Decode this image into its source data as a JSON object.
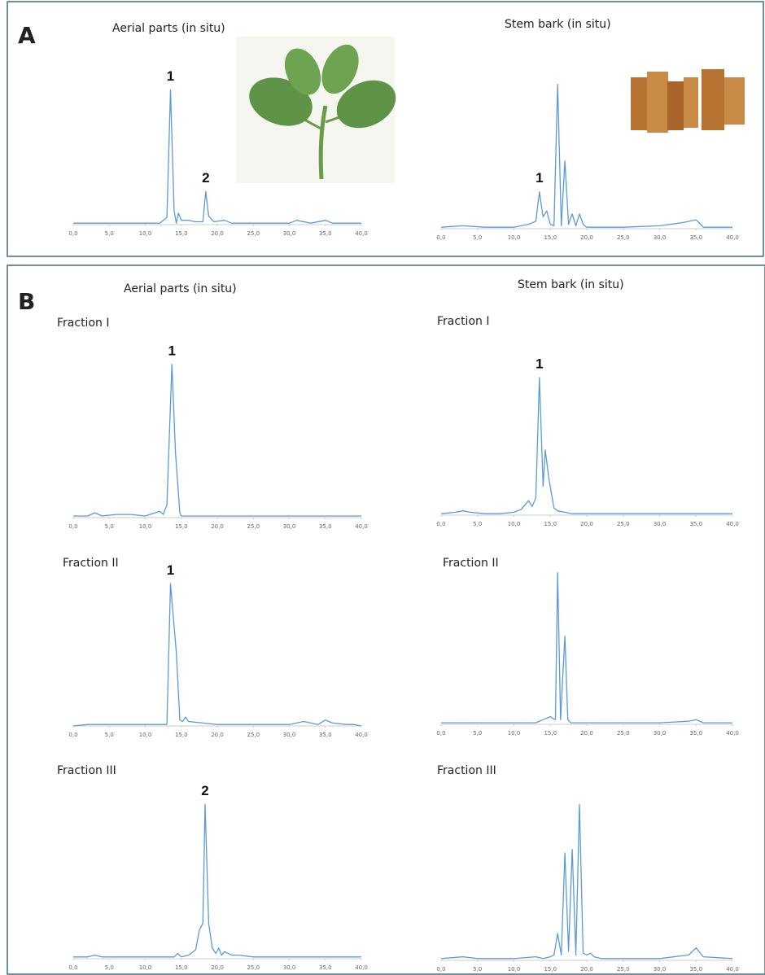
{
  "panel_labels": [
    "A",
    "B"
  ],
  "column_headers": [
    "Aerial parts (in situ)",
    "Stem bark (in situ)"
  ],
  "chart_data": [
    {
      "type": "line",
      "title": "Aerial parts (in situ)",
      "color": "#5b9bd5",
      "x": [
        0,
        3,
        6,
        9,
        12,
        13,
        13.5,
        14,
        14.3,
        14.6,
        15,
        16,
        17,
        18,
        18.4,
        18.8,
        19.5,
        21,
        22,
        25,
        30,
        31,
        33,
        35,
        36,
        40
      ],
      "values": [
        1,
        1,
        1,
        1,
        1,
        5,
        94,
        10,
        1,
        8,
        3,
        3,
        2,
        2,
        23,
        6,
        2,
        3,
        1,
        1,
        1,
        3,
        1,
        3,
        1,
        1
      ],
      "annotations": [
        {
          "text": "1",
          "x": 13.5
        },
        {
          "text": "2",
          "x": 18.4
        }
      ],
      "xlim": [
        0,
        40
      ],
      "ylim": [
        0,
        100
      ],
      "xticks": [
        {
          "value": 0,
          "label": "0,0"
        },
        {
          "value": 5,
          "label": "5,0"
        },
        {
          "value": 10,
          "label": "10,0"
        },
        {
          "value": 15,
          "label": "15,0"
        },
        {
          "value": 20,
          "label": "20,0"
        },
        {
          "value": 25,
          "label": "25,0"
        },
        {
          "value": 30,
          "label": "30,0"
        },
        {
          "value": 35,
          "label": "35,0"
        },
        {
          "value": 40,
          "label": "40,0"
        }
      ]
    },
    {
      "type": "line",
      "title": "Stem bark (in situ)",
      "color": "#5b9bd5",
      "x": [
        0,
        3,
        6,
        10,
        12,
        13,
        13.5,
        14,
        14.5,
        15,
        15.5,
        16,
        16.5,
        17,
        17.5,
        18,
        18.5,
        19,
        19.5,
        20,
        25,
        30,
        33,
        35,
        36,
        40
      ],
      "values": [
        1,
        2,
        1,
        1,
        3,
        5,
        25,
        8,
        12,
        3,
        2,
        98,
        2,
        46,
        3,
        10,
        2,
        10,
        3,
        1,
        1,
        2,
        4,
        6,
        1,
        1
      ],
      "annotations": [
        {
          "text": "1",
          "x": 13.5
        }
      ],
      "xlim": [
        0,
        40
      ],
      "ylim": [
        0,
        100
      ],
      "xticks": [
        {
          "value": 0,
          "label": "0,0"
        },
        {
          "value": 5,
          "label": "5,0"
        },
        {
          "value": 10,
          "label": "10,0"
        },
        {
          "value": 15,
          "label": "15,0"
        },
        {
          "value": 20,
          "label": "20,0"
        },
        {
          "value": 25,
          "label": "25,0"
        },
        {
          "value": 30,
          "label": "30,0"
        },
        {
          "value": 35,
          "label": "35,0"
        },
        {
          "value": 40,
          "label": "40,0"
        }
      ]
    },
    {
      "type": "line",
      "title": "Fraction I",
      "color": "#5b9bd5",
      "x": [
        0,
        2,
        3,
        4,
        6,
        8,
        10,
        12,
        12.5,
        13,
        13.7,
        14.2,
        14.8,
        15,
        16,
        20,
        25,
        30,
        35,
        40
      ],
      "values": [
        1,
        1,
        3,
        1,
        2,
        2,
        1,
        4,
        2,
        8,
        96,
        40,
        3,
        1,
        1,
        1,
        1,
        1,
        1,
        1
      ],
      "annotations": [
        {
          "text": "1",
          "x": 13.7
        }
      ],
      "xlim": [
        0,
        40
      ],
      "ylim": [
        0,
        100
      ],
      "xticks": [
        {
          "value": 0,
          "label": "0,0"
        },
        {
          "value": 5,
          "label": "5,0"
        },
        {
          "value": 10,
          "label": "10,0"
        },
        {
          "value": 15,
          "label": "15,0"
        },
        {
          "value": 20,
          "label": "20,0"
        },
        {
          "value": 25,
          "label": "25,0"
        },
        {
          "value": 30,
          "label": "30,0"
        },
        {
          "value": 35,
          "label": "35,0"
        },
        {
          "value": 40,
          "label": "40,0"
        }
      ]
    },
    {
      "type": "line",
      "title": "Fraction I",
      "color": "#5b9bd5",
      "x": [
        0,
        2,
        3,
        4,
        6,
        8,
        10,
        11,
        12,
        12.5,
        13,
        13.5,
        14,
        14.3,
        14.8,
        15.5,
        16,
        17,
        18,
        20,
        25,
        30,
        35,
        40
      ],
      "values": [
        1,
        2,
        3,
        2,
        1,
        1,
        2,
        4,
        10,
        6,
        12,
        95,
        20,
        45,
        25,
        5,
        3,
        2,
        1,
        1,
        1,
        1,
        1,
        1
      ],
      "annotations": [
        {
          "text": "1",
          "x": 13.5
        }
      ],
      "xlim": [
        0,
        40
      ],
      "ylim": [
        0,
        100
      ],
      "xticks": [
        {
          "value": 0,
          "label": "0,0"
        },
        {
          "value": 5,
          "label": "5,0"
        },
        {
          "value": 10,
          "label": "10,0"
        },
        {
          "value": 15,
          "label": "15,0"
        },
        {
          "value": 20,
          "label": "20,0"
        },
        {
          "value": 25,
          "label": "25,0"
        },
        {
          "value": 30,
          "label": "30,0"
        },
        {
          "value": 35,
          "label": "35,0"
        },
        {
          "value": 40,
          "label": "40,0"
        }
      ]
    },
    {
      "type": "line",
      "title": "Fraction II",
      "color": "#5b9bd5",
      "x": [
        0,
        2,
        5,
        10,
        13,
        13.5,
        14.3,
        14.8,
        15.2,
        15.6,
        16,
        18,
        20,
        25,
        30,
        32,
        33,
        34,
        35,
        36,
        38,
        39,
        40
      ],
      "values": [
        0,
        1,
        1,
        1,
        1,
        96,
        50,
        4,
        3,
        6,
        3,
        2,
        1,
        1,
        1,
        3,
        2,
        1,
        4,
        2,
        1,
        1,
        0
      ],
      "annotations": [
        {
          "text": "1",
          "x": 13.5
        }
      ],
      "xlim": [
        0,
        40
      ],
      "ylim": [
        0,
        100
      ],
      "xticks": [
        {
          "value": 0,
          "label": "0,0"
        },
        {
          "value": 5,
          "label": "5,0"
        },
        {
          "value": 10,
          "label": "10,0"
        },
        {
          "value": 15,
          "label": "15,0"
        },
        {
          "value": 20,
          "label": "20,0"
        },
        {
          "value": 25,
          "label": "25,0"
        },
        {
          "value": 30,
          "label": "30,0"
        },
        {
          "value": 35,
          "label": "35,0"
        },
        {
          "value": 40,
          "label": "40,0"
        }
      ]
    },
    {
      "type": "line",
      "title": "Fraction II",
      "color": "#5b9bd5",
      "x": [
        0,
        5,
        10,
        13,
        14,
        15,
        15.3,
        15.7,
        16,
        16.4,
        17,
        17.4,
        17.8,
        20,
        25,
        30,
        34,
        35,
        36,
        40
      ],
      "values": [
        1,
        1,
        1,
        1,
        3,
        5,
        4,
        3,
        98,
        3,
        57,
        3,
        1,
        1,
        1,
        1,
        2,
        3,
        1,
        1
      ],
      "xlim": [
        0,
        40
      ],
      "ylim": [
        0,
        100
      ],
      "xticks": [
        {
          "value": 0,
          "label": "0,0"
        },
        {
          "value": 5,
          "label": "5,0"
        },
        {
          "value": 10,
          "label": "10,0"
        },
        {
          "value": 15,
          "label": "15,0"
        },
        {
          "value": 20,
          "label": "20,0"
        },
        {
          "value": 25,
          "label": "25,0"
        },
        {
          "value": 30,
          "label": "30,0"
        },
        {
          "value": 35,
          "label": "35,0"
        },
        {
          "value": 40,
          "label": "40,0"
        }
      ]
    },
    {
      "type": "line",
      "title": "Fraction III",
      "color": "#5b9bd5",
      "x": [
        0,
        2,
        3,
        4,
        10,
        14,
        14.5,
        15,
        16,
        17,
        17.5,
        18,
        18.3,
        18.8,
        19.3,
        19.8,
        20.2,
        20.6,
        21,
        22,
        23,
        25,
        30,
        35,
        40
      ],
      "values": [
        1,
        1,
        2,
        1,
        1,
        1,
        3,
        1,
        2,
        5,
        16,
        20,
        87,
        20,
        6,
        3,
        6,
        2,
        4,
        2,
        2,
        1,
        1,
        1,
        1
      ],
      "annotations": [
        {
          "text": "2",
          "x": 18.3
        }
      ],
      "xlim": [
        0,
        40
      ],
      "ylim": [
        0,
        100
      ],
      "xticks": [
        {
          "value": 0,
          "label": "0,0"
        },
        {
          "value": 5,
          "label": "5,0"
        },
        {
          "value": 10,
          "label": "10,0"
        },
        {
          "value": 15,
          "label": "15,0"
        },
        {
          "value": 20,
          "label": "20,0"
        },
        {
          "value": 25,
          "label": "25,0"
        },
        {
          "value": 30,
          "label": "30,0"
        },
        {
          "value": 35,
          "label": "35,0"
        },
        {
          "value": 40,
          "label": "40,0"
        }
      ]
    },
    {
      "type": "line",
      "title": "Fraction III",
      "color": "#5b9bd5",
      "x": [
        0,
        3,
        5,
        10,
        13,
        14,
        15,
        15.5,
        16,
        16.5,
        17,
        17.5,
        18,
        18.5,
        19,
        19.5,
        20,
        20.5,
        21,
        22,
        25,
        30,
        34,
        35,
        36,
        40
      ],
      "values": [
        1,
        2,
        1,
        1,
        2,
        1,
        2,
        3,
        15,
        3,
        60,
        5,
        62,
        3,
        87,
        4,
        3,
        4,
        2,
        1,
        1,
        1,
        3,
        7,
        2,
        1
      ],
      "xlim": [
        0,
        40
      ],
      "ylim": [
        0,
        100
      ],
      "xticks": [
        {
          "value": 0,
          "label": "0,0"
        },
        {
          "value": 5,
          "label": "5,0"
        },
        {
          "value": 10,
          "label": "10,0"
        },
        {
          "value": 15,
          "label": "15,0"
        },
        {
          "value": 20,
          "label": "20,0"
        },
        {
          "value": 25,
          "label": "25,0"
        },
        {
          "value": 30,
          "label": "30,0"
        },
        {
          "value": 35,
          "label": "35,0"
        },
        {
          "value": 40,
          "label": "40,0"
        }
      ]
    }
  ]
}
